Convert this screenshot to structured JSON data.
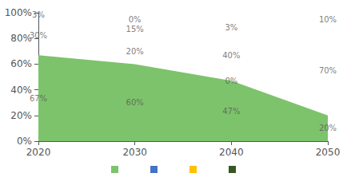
{
  "chart_data": {
    "type": "area",
    "stacked": true,
    "x": [
      2020,
      2030,
      2040,
      2050
    ],
    "series": [
      {
        "color": "#7DC36B",
        "values": [
          67,
          60,
          47,
          20
        ],
        "value_labels": [
          "67%",
          "60%",
          "47%",
          "20%"
        ]
      },
      {
        "color": "#4472C4",
        "values": [
          30,
          20,
          0,
          0
        ],
        "value_labels": [
          "30%",
          "20%",
          "0%",
          null
        ]
      },
      {
        "color": "#FFC000",
        "values": [
          0,
          15,
          40,
          70
        ],
        "value_labels": [
          null,
          "15%",
          "40%",
          "70%"
        ]
      },
      {
        "color": "#375623",
        "values": [
          3,
          0,
          3,
          10
        ],
        "value_labels": [
          "3%",
          "0%",
          "3%",
          "10%"
        ]
      }
    ],
    "xlim": [
      2020,
      2050
    ],
    "xticks": [
      2020,
      2030,
      2040,
      2050
    ],
    "ylim": [
      0,
      100
    ],
    "yticks": [
      {
        "value": 0,
        "label": "0%"
      },
      {
        "value": 20,
        "label": "20%"
      },
      {
        "value": 40,
        "label": "40%"
      },
      {
        "value": 60,
        "label": "60%"
      },
      {
        "value": 80,
        "label": "80%"
      },
      {
        "value": 100,
        "label": "100%"
      }
    ],
    "grid": false,
    "data_labels": true,
    "legend": "bottom"
  }
}
